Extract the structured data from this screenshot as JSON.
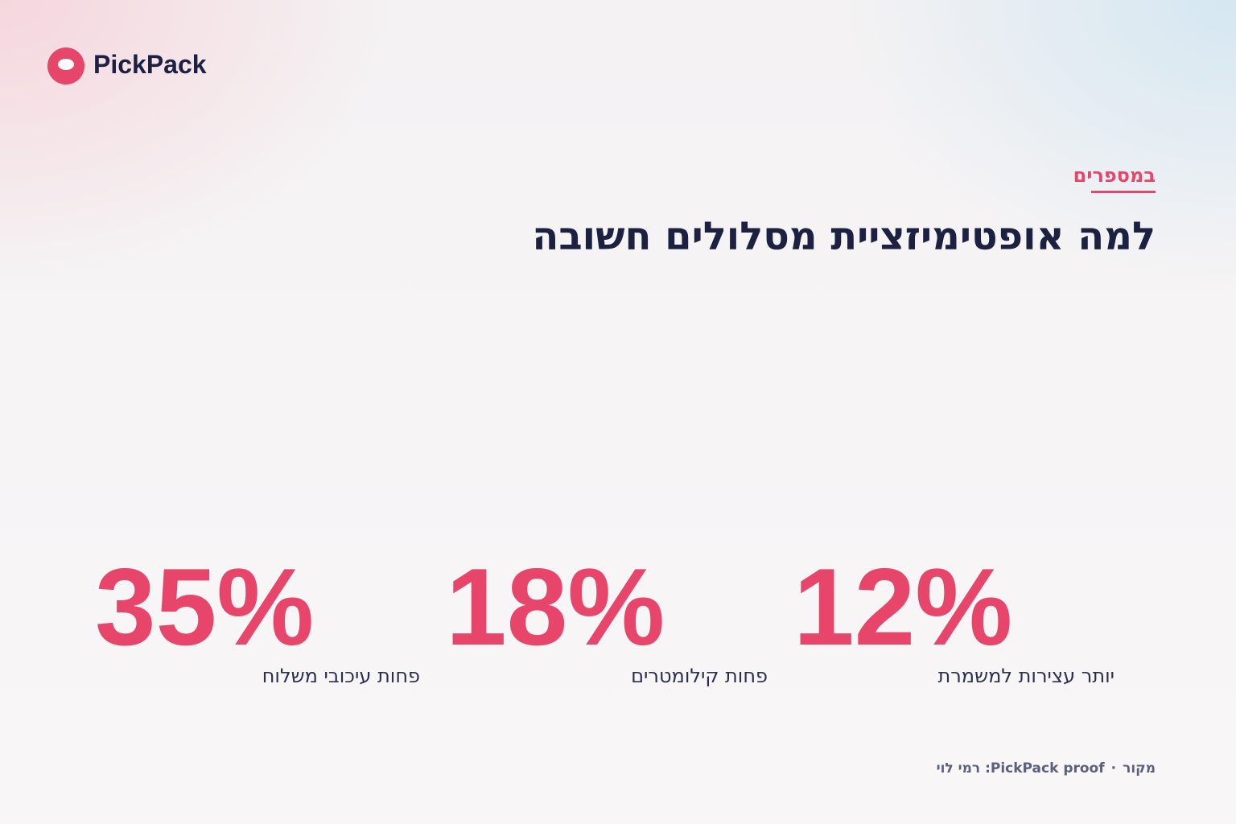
{
  "brand": {
    "name": "PickPack"
  },
  "header": {
    "eyebrow": "במספרים",
    "title": "למה אופטימיזציית מסלולים חשובה"
  },
  "stats": [
    {
      "value": "12%",
      "label": "יותר עצירות למשמרת"
    },
    {
      "value": "18%",
      "label": "פחות קילומטרים"
    },
    {
      "value": "35%",
      "label": "פחות עיכובי משלוח"
    }
  ],
  "source": {
    "label": "מקור",
    "separator": "·",
    "text": "PickPack proof: רמי לוי"
  }
}
